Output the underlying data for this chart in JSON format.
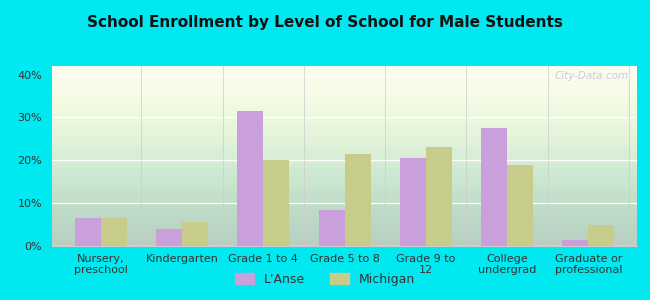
{
  "title": "School Enrollment by Level of School for Male Students",
  "categories": [
    "Nursery,\npreschool",
    "Kindergarten",
    "Grade 1 to 4",
    "Grade 5 to 8",
    "Grade 9 to\n12",
    "College\nundergrad",
    "Graduate or\nprofessional"
  ],
  "lanse_values": [
    6.5,
    4.0,
    31.5,
    8.5,
    20.5,
    27.5,
    1.5
  ],
  "michigan_values": [
    6.5,
    5.5,
    20.0,
    21.5,
    23.0,
    19.0,
    5.0
  ],
  "lanse_color": "#c9a0dc",
  "michigan_color": "#c8cc8a",
  "background_outer": "#00e8f0",
  "background_inner_top": "#eaf5e2",
  "background_inner_bottom": "#f8fcf5",
  "ylim": [
    0,
    42
  ],
  "yticks": [
    0,
    10,
    20,
    30,
    40
  ],
  "ytick_labels": [
    "0%",
    "10%",
    "20%",
    "30%",
    "40%"
  ],
  "legend_labels": [
    "L'Anse",
    "Michigan"
  ],
  "bar_width": 0.32,
  "title_fontsize": 11,
  "tick_fontsize": 8,
  "legend_fontsize": 9,
  "watermark_text": "City-Data.com"
}
